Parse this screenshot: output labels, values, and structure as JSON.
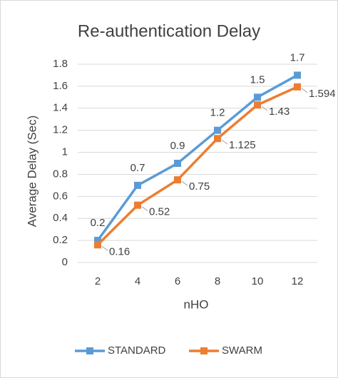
{
  "chart_data": {
    "type": "line",
    "title": "Re-authentication Delay",
    "x_label": "nHO",
    "y_label": "Average Delay (Sec)",
    "categories": [
      "2",
      "4",
      "6",
      "8",
      "10",
      "12"
    ],
    "series": [
      {
        "name": "STANDARD",
        "color": "#5b9bd5",
        "values": [
          0.2,
          0.7,
          0.9,
          1.2,
          1.5,
          1.7
        ]
      },
      {
        "name": "SWARM",
        "color": "#ed7d31",
        "values": [
          0.16,
          0.52,
          0.75,
          1.125,
          1.43,
          1.594
        ]
      }
    ],
    "ylim": [
      0,
      1.8
    ],
    "yticks": [
      0,
      0.2,
      0.4,
      0.6,
      0.8,
      1,
      1.2,
      1.4,
      1.6,
      1.8
    ],
    "grid": true,
    "legend": "bottom"
  }
}
